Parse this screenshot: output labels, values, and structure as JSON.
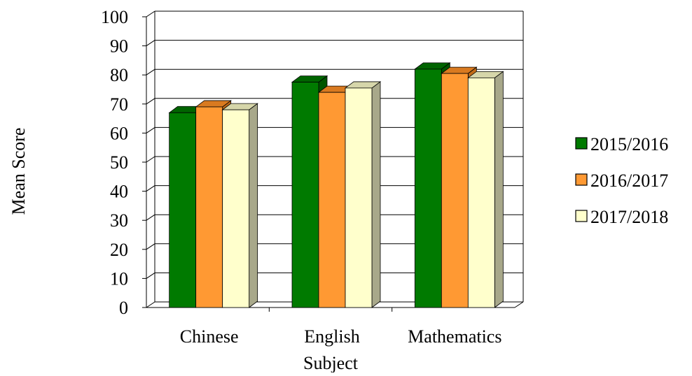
{
  "chart_data": {
    "type": "bar",
    "title": "",
    "xlabel": "Subject",
    "ylabel": "Mean Score",
    "categories": [
      "Chinese",
      "English",
      "Mathematics"
    ],
    "series": [
      {
        "name": "2015/2016",
        "values": [
          67,
          77.5,
          82
        ],
        "color": "#007A00",
        "top_color": "#006400",
        "side_color": "#005500"
      },
      {
        "name": "2016/2017",
        "values": [
          69,
          74,
          80.5
        ],
        "color": "#FF9933",
        "top_color": "#D97A20",
        "side_color": "#C06A18"
      },
      {
        "name": "2017/2018",
        "values": [
          68,
          75.5,
          79
        ],
        "color": "#FFFFCC",
        "top_color": "#D6D6AA",
        "side_color": "#A8A88A"
      }
    ],
    "ylim": [
      0,
      100
    ],
    "yticks": [
      "0",
      "10",
      "20",
      "30",
      "40",
      "50",
      "60",
      "70",
      "80",
      "90",
      "100"
    ],
    "grid": true,
    "legend_position": "right",
    "style": "3d-column"
  }
}
